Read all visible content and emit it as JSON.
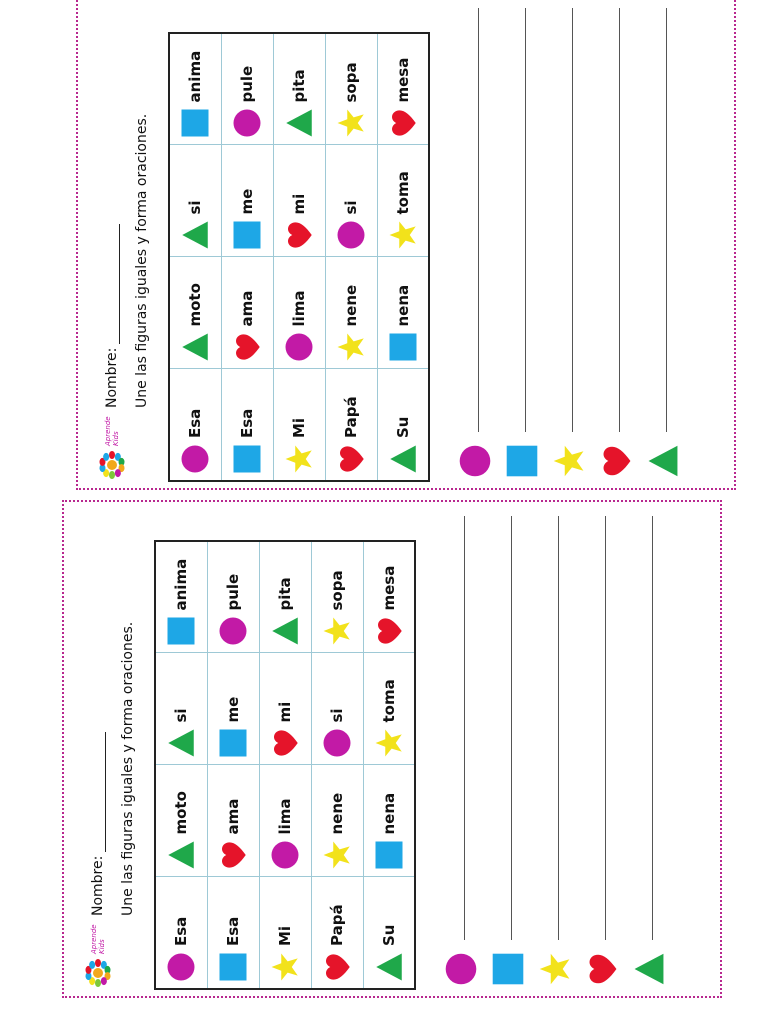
{
  "worksheets": [
    {
      "id": "top",
      "nombre_label": "Nombre:",
      "instruction": "Une las figuras iguales y forma oraciones.",
      "logo_text": "Aprende Kids",
      "rows": [
        [
          {
            "shape": "circle",
            "word": "Esa"
          },
          {
            "shape": "triangle",
            "word": "moto"
          },
          {
            "shape": "triangle",
            "word": "si"
          },
          {
            "shape": "square",
            "word": "anima"
          }
        ],
        [
          {
            "shape": "square",
            "word": "Esa"
          },
          {
            "shape": "heart",
            "word": "ama"
          },
          {
            "shape": "square",
            "word": "me"
          },
          {
            "shape": "circle",
            "word": "pule"
          }
        ],
        [
          {
            "shape": "star",
            "word": "Mi"
          },
          {
            "shape": "circle",
            "word": "lima"
          },
          {
            "shape": "heart",
            "word": "mi"
          },
          {
            "shape": "triangle",
            "word": "pita"
          }
        ],
        [
          {
            "shape": "heart",
            "word": "Papá"
          },
          {
            "shape": "star",
            "word": "nene"
          },
          {
            "shape": "circle",
            "word": "si"
          },
          {
            "shape": "star",
            "word": "sopa"
          }
        ],
        [
          {
            "shape": "triangle",
            "word": "Su"
          },
          {
            "shape": "square",
            "word": "nena"
          },
          {
            "shape": "star",
            "word": "toma"
          },
          {
            "shape": "heart",
            "word": "mesa"
          }
        ]
      ],
      "answer_shapes": [
        "circle",
        "square",
        "star",
        "heart",
        "triangle"
      ]
    },
    {
      "id": "bottom",
      "nombre_label": "Nombre:",
      "instruction": "Une las figuras iguales y forma oraciones.",
      "logo_text": "Aprende Kids",
      "rows": [
        [
          {
            "shape": "circle",
            "word": "Esa"
          },
          {
            "shape": "triangle",
            "word": "moto"
          },
          {
            "shape": "triangle",
            "word": "si"
          },
          {
            "shape": "square",
            "word": "anima"
          }
        ],
        [
          {
            "shape": "square",
            "word": "Esa"
          },
          {
            "shape": "heart",
            "word": "ama"
          },
          {
            "shape": "square",
            "word": "me"
          },
          {
            "shape": "circle",
            "word": "pule"
          }
        ],
        [
          {
            "shape": "star",
            "word": "Mi"
          },
          {
            "shape": "circle",
            "word": "lima"
          },
          {
            "shape": "heart",
            "word": "mi"
          },
          {
            "shape": "triangle",
            "word": "pita"
          }
        ],
        [
          {
            "shape": "heart",
            "word": "Papá"
          },
          {
            "shape": "star",
            "word": "nene"
          },
          {
            "shape": "circle",
            "word": "si"
          },
          {
            "shape": "star",
            "word": "sopa"
          }
        ],
        [
          {
            "shape": "triangle",
            "word": "Su"
          },
          {
            "shape": "square",
            "word": "nena"
          },
          {
            "shape": "star",
            "word": "toma"
          },
          {
            "shape": "heart",
            "word": "mesa"
          }
        ]
      ],
      "answer_shapes": [
        "circle",
        "square",
        "star",
        "heart",
        "triangle"
      ]
    }
  ],
  "colors": {
    "circle": "#c21aa6",
    "square": "#1ea7e6",
    "star": "#f2e21b",
    "heart": "#e5142a",
    "triangle": "#1fa84a",
    "border": "#b8288f"
  }
}
